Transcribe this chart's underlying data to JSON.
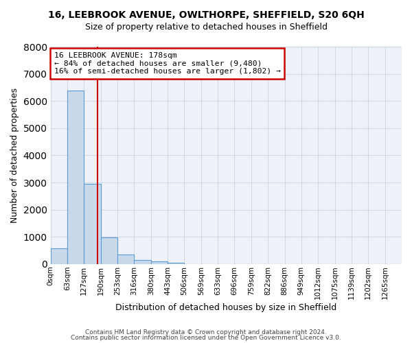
{
  "title1": "16, LEEBROOK AVENUE, OWLTHORPE, SHEFFIELD, S20 6QH",
  "title2": "Size of property relative to detached houses in Sheffield",
  "xlabel": "Distribution of detached houses by size in Sheffield",
  "ylabel": "Number of detached properties",
  "bin_labels": [
    "0sqm",
    "63sqm",
    "127sqm",
    "190sqm",
    "253sqm",
    "316sqm",
    "380sqm",
    "443sqm",
    "506sqm",
    "569sqm",
    "633sqm",
    "696sqm",
    "759sqm",
    "822sqm",
    "886sqm",
    "949sqm",
    "1012sqm",
    "1075sqm",
    "1139sqm",
    "1202sqm",
    "1265sqm"
  ],
  "bar_heights": [
    570,
    6380,
    2940,
    970,
    350,
    150,
    90,
    60,
    0,
    0,
    0,
    0,
    0,
    0,
    0,
    0,
    0,
    0,
    0,
    0,
    0
  ],
  "bar_color": "#c8d9eb",
  "bar_edge_color": "#5b9bd5",
  "grid_color": "#d0d8e8",
  "background_color": "#eef2f8",
  "vline_color": "#cc0000",
  "annotation_text": "16 LEEBROOK AVENUE: 178sqm\n← 84% of detached houses are smaller (9,480)\n16% of semi-detached houses are larger (1,802) →",
  "annotation_box_color": "#cc0000",
  "ylim": [
    0,
    8000
  ],
  "yticks": [
    0,
    1000,
    2000,
    3000,
    4000,
    5000,
    6000,
    7000,
    8000
  ],
  "footer1": "Contains HM Land Registry data © Crown copyright and database right 2024.",
  "footer2": "Contains public sector information licensed under the Open Government Licence v3.0.",
  "property_size": 178,
  "bin_width": 63
}
